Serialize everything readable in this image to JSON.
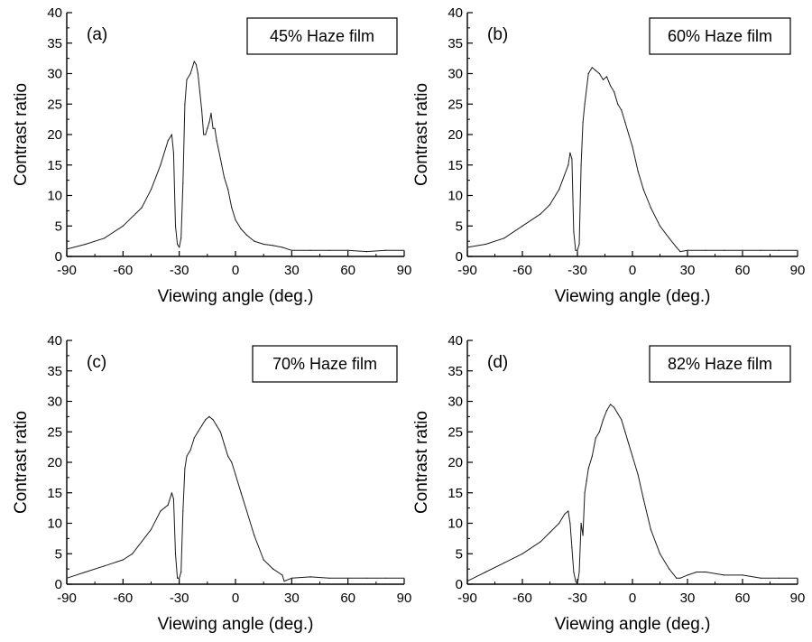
{
  "chart_data": [
    {
      "type": "line",
      "panel_label": "(a)",
      "legend": "45% Haze film",
      "xlabel": "Viewing angle (deg.)",
      "ylabel": "Contrast ratio",
      "xlim": [
        -90,
        90
      ],
      "ylim": [
        0,
        40
      ],
      "xticks": [
        -90,
        -60,
        -30,
        0,
        30,
        60,
        90
      ],
      "yticks": [
        0,
        5,
        10,
        15,
        20,
        25,
        30,
        35,
        40
      ],
      "series": [
        {
          "x": [
            -90,
            -80,
            -70,
            -60,
            -50,
            -45,
            -40,
            -36,
            -34,
            -33,
            -32,
            -31,
            -30,
            -29,
            -28,
            -27,
            -26,
            -24,
            -22,
            -21,
            -20,
            -19,
            -18,
            -17,
            -16,
            -15,
            -14,
            -13,
            -12,
            -11,
            -10,
            -8,
            -6,
            -4,
            -2,
            0,
            3,
            6,
            10,
            15,
            20,
            25,
            30,
            40,
            50,
            60,
            70,
            80,
            90
          ],
          "y": [
            1.2,
            2,
            3,
            5,
            8,
            11,
            15,
            19,
            20,
            17,
            5,
            2,
            1.5,
            3,
            12,
            25,
            29,
            30,
            32,
            31.5,
            30,
            27,
            24,
            20,
            20,
            21,
            22,
            23.5,
            21,
            21,
            19,
            16,
            13,
            11,
            8,
            6,
            4.5,
            3.5,
            2.5,
            2,
            1.8,
            1.5,
            1,
            1,
            1,
            1,
            0.8,
            1,
            1
          ]
        }
      ]
    },
    {
      "type": "line",
      "panel_label": "(b)",
      "legend": "60% Haze film",
      "xlabel": "Viewing angle (deg.)",
      "ylabel": "Contrast ratio",
      "xlim": [
        -90,
        90
      ],
      "ylim": [
        0,
        40
      ],
      "xticks": [
        -90,
        -60,
        -30,
        0,
        30,
        60,
        90
      ],
      "yticks": [
        0,
        5,
        10,
        15,
        20,
        25,
        30,
        35,
        40
      ],
      "series": [
        {
          "x": [
            -90,
            -80,
            -70,
            -60,
            -50,
            -45,
            -40,
            -35,
            -34,
            -33,
            -32,
            -31,
            -30,
            -29,
            -28,
            -27,
            -26,
            -24,
            -22,
            -20,
            -18,
            -16,
            -14,
            -12,
            -10,
            -8,
            -6,
            -4,
            -2,
            0,
            3,
            6,
            10,
            15,
            20,
            24,
            26,
            30,
            40,
            50,
            60,
            70,
            80,
            90
          ],
          "y": [
            1.5,
            2,
            3,
            5,
            7,
            8.5,
            11,
            15,
            17,
            16,
            4,
            1,
            1,
            2,
            15,
            22,
            25,
            30,
            31,
            30.5,
            30,
            29,
            29.5,
            28,
            27,
            25,
            24,
            22,
            20,
            18,
            14,
            11,
            8,
            5,
            3,
            1.5,
            0.8,
            1,
            1,
            1,
            1,
            1,
            1,
            1
          ]
        }
      ]
    },
    {
      "type": "line",
      "panel_label": "(c)",
      "legend": "70% Haze film",
      "xlabel": "Viewing angle (deg.)",
      "ylabel": "Contrast ratio",
      "xlim": [
        -90,
        90
      ],
      "ylim": [
        0,
        40
      ],
      "xticks": [
        -90,
        -60,
        -30,
        0,
        30,
        60,
        90
      ],
      "yticks": [
        0,
        5,
        10,
        15,
        20,
        25,
        30,
        35,
        40
      ],
      "series": [
        {
          "x": [
            -90,
            -80,
            -70,
            -60,
            -55,
            -50,
            -45,
            -40,
            -36,
            -34,
            -33,
            -32,
            -31,
            -30,
            -29,
            -28,
            -27,
            -26,
            -24,
            -22,
            -20,
            -18,
            -16,
            -14,
            -12,
            -10,
            -8,
            -6,
            -4,
            -2,
            0,
            3,
            6,
            10,
            15,
            20,
            25,
            26,
            30,
            40,
            50,
            60,
            70,
            80,
            90
          ],
          "y": [
            1,
            2,
            3,
            4,
            5,
            7,
            9,
            12,
            13,
            15,
            14,
            5,
            1,
            1,
            2,
            12,
            19,
            21,
            22,
            24,
            25,
            26,
            27,
            27.5,
            27,
            26,
            25,
            23,
            21,
            20,
            18,
            15,
            12,
            8,
            4,
            2.5,
            1.5,
            0.5,
            1,
            1.2,
            1,
            1,
            1,
            1,
            1
          ]
        }
      ]
    },
    {
      "type": "line",
      "panel_label": "(d)",
      "legend": "82% Haze film",
      "xlabel": "Viewing angle (deg.)",
      "ylabel": "Contrast ratio",
      "xlim": [
        -90,
        90
      ],
      "ylim": [
        0,
        40
      ],
      "xticks": [
        -90,
        -60,
        -30,
        0,
        30,
        60,
        90
      ],
      "yticks": [
        0,
        5,
        10,
        15,
        20,
        25,
        30,
        35,
        40
      ],
      "series": [
        {
          "x": [
            -90,
            -80,
            -70,
            -60,
            -50,
            -45,
            -40,
            -37,
            -35,
            -34,
            -33,
            -32,
            -31,
            -30,
            -29,
            -28,
            -27,
            -26,
            -25,
            -24,
            -22,
            -20,
            -18,
            -16,
            -14,
            -12,
            -10,
            -8,
            -6,
            -4,
            -2,
            0,
            3,
            6,
            10,
            15,
            20,
            24,
            26,
            30,
            35,
            40,
            50,
            60,
            70,
            80,
            90
          ],
          "y": [
            0.5,
            2,
            3.5,
            5,
            7,
            8.5,
            10,
            11.5,
            12,
            10,
            6,
            2,
            0.5,
            0,
            2,
            10,
            8,
            15,
            17,
            19,
            21,
            24,
            25,
            27,
            28.5,
            29.5,
            29,
            28,
            27,
            25,
            23,
            21,
            18,
            14,
            9,
            5,
            2.5,
            1,
            1,
            1.5,
            2,
            2,
            1.5,
            1.5,
            1,
            1,
            1
          ]
        }
      ]
    }
  ]
}
